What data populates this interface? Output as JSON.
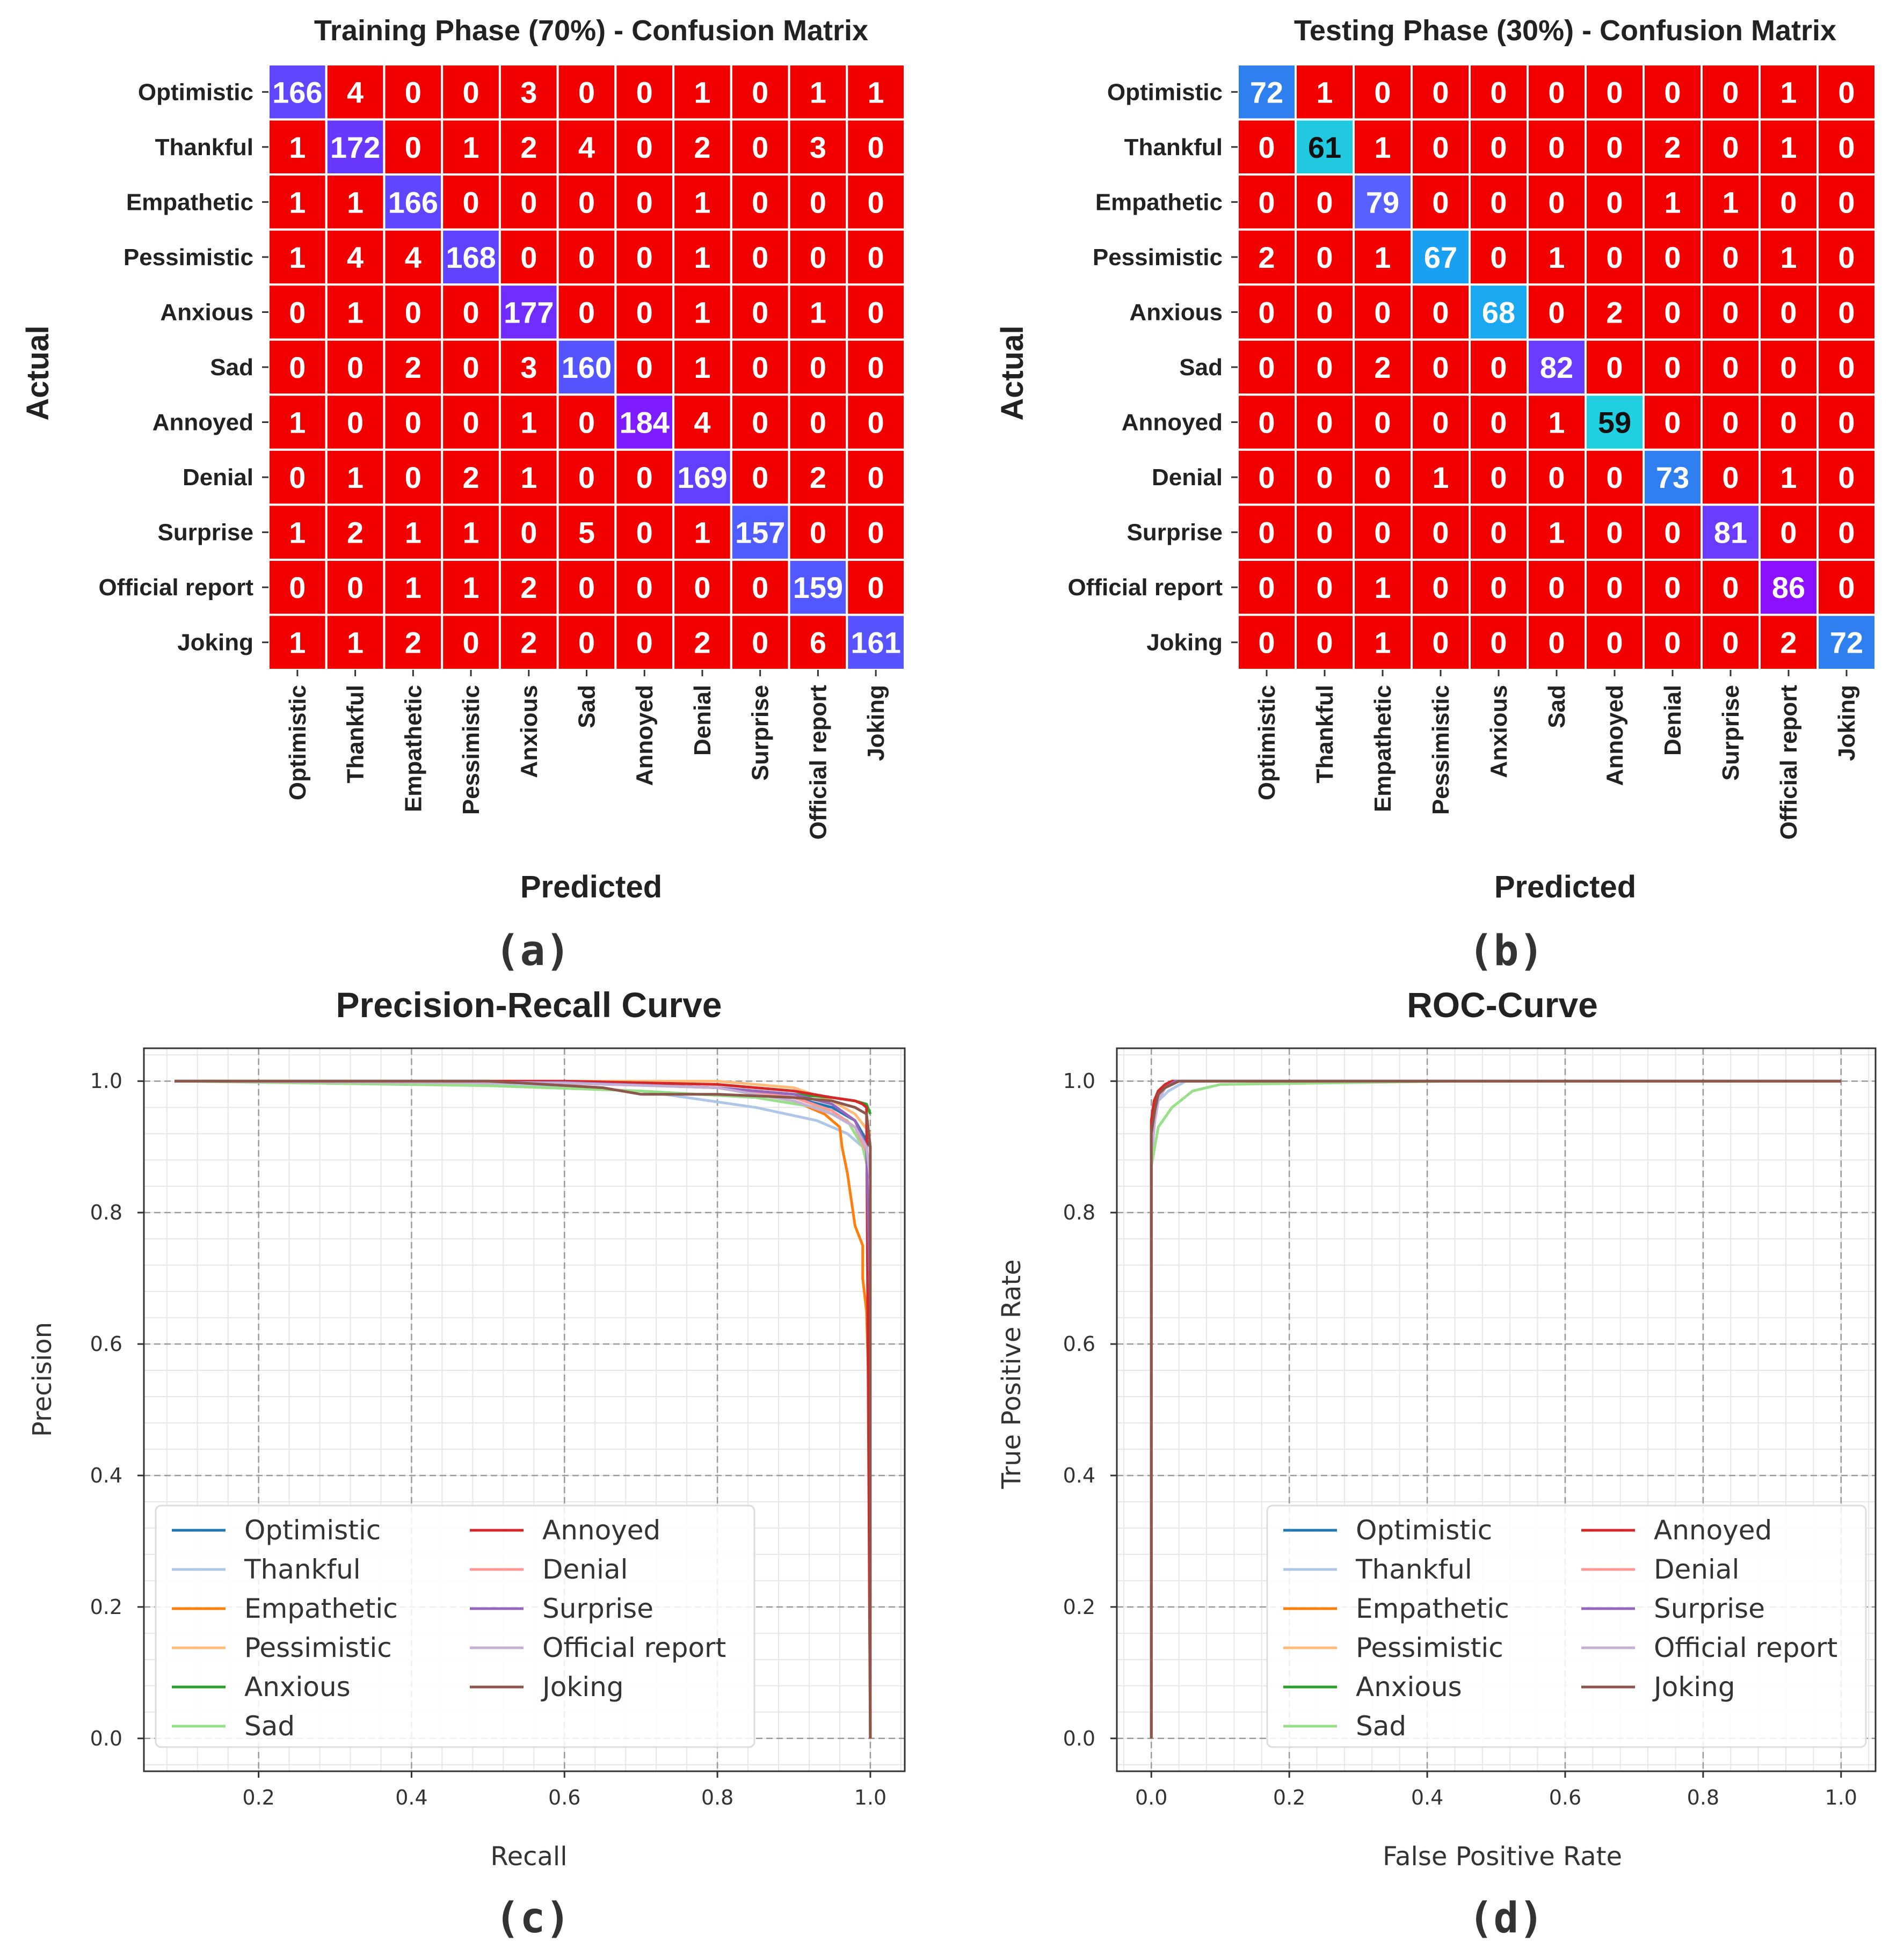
{
  "chart_data": [
    {
      "type": "heatmap",
      "panel_label": "(a)",
      "title": "Training Phase (70%) - Confusion Matrix",
      "xlabel": "Predicted",
      "ylabel": "Actual",
      "labels": [
        "Optimistic",
        "Thankful",
        "Empathetic",
        "Pessimistic",
        "Anxious",
        "Sad",
        "Annoyed",
        "Denial",
        "Surprise",
        "Official report",
        "Joking"
      ],
      "matrix": [
        [
          166,
          4,
          0,
          0,
          3,
          0,
          0,
          1,
          0,
          1,
          1
        ],
        [
          1,
          172,
          0,
          1,
          2,
          4,
          0,
          2,
          0,
          3,
          0
        ],
        [
          1,
          1,
          166,
          0,
          0,
          0,
          0,
          1,
          0,
          0,
          0
        ],
        [
          1,
          4,
          4,
          168,
          0,
          0,
          0,
          1,
          0,
          0,
          0
        ],
        [
          0,
          1,
          0,
          0,
          177,
          0,
          0,
          1,
          0,
          1,
          0
        ],
        [
          0,
          0,
          2,
          0,
          3,
          160,
          0,
          1,
          0,
          0,
          0
        ],
        [
          1,
          0,
          0,
          0,
          1,
          0,
          184,
          4,
          0,
          0,
          0
        ],
        [
          0,
          1,
          0,
          2,
          1,
          0,
          0,
          169,
          0,
          2,
          0
        ],
        [
          1,
          2,
          1,
          1,
          0,
          5,
          0,
          1,
          157,
          0,
          0
        ],
        [
          0,
          0,
          1,
          1,
          2,
          0,
          0,
          0,
          0,
          159,
          0
        ],
        [
          1,
          1,
          2,
          0,
          2,
          0,
          0,
          2,
          0,
          6,
          161
        ]
      ],
      "offdiag_color": "#f20000",
      "diag_color_low": "#4f5cff",
      "diag_color_high": "#7c1cff",
      "text_color": "#ffffff"
    },
    {
      "type": "heatmap",
      "panel_label": "(b)",
      "title": "Testing Phase (30%) - Confusion Matrix",
      "xlabel": "Predicted",
      "ylabel": "Actual",
      "labels": [
        "Optimistic",
        "Thankful",
        "Empathetic",
        "Pessimistic",
        "Anxious",
        "Sad",
        "Annoyed",
        "Denial",
        "Surprise",
        "Official report",
        "Joking"
      ],
      "matrix": [
        [
          72,
          1,
          0,
          0,
          0,
          0,
          0,
          0,
          0,
          1,
          0
        ],
        [
          0,
          61,
          1,
          0,
          0,
          0,
          0,
          2,
          0,
          1,
          0
        ],
        [
          0,
          0,
          79,
          0,
          0,
          0,
          0,
          1,
          1,
          0,
          0
        ],
        [
          2,
          0,
          1,
          67,
          0,
          1,
          0,
          0,
          0,
          1,
          0
        ],
        [
          0,
          0,
          0,
          0,
          68,
          0,
          2,
          0,
          0,
          0,
          0
        ],
        [
          0,
          0,
          2,
          0,
          0,
          82,
          0,
          0,
          0,
          0,
          0
        ],
        [
          0,
          0,
          0,
          0,
          0,
          1,
          59,
          0,
          0,
          0,
          0
        ],
        [
          0,
          0,
          0,
          1,
          0,
          0,
          0,
          73,
          0,
          1,
          0
        ],
        [
          0,
          0,
          0,
          0,
          0,
          1,
          0,
          0,
          81,
          0,
          0
        ],
        [
          0,
          0,
          1,
          0,
          0,
          0,
          0,
          0,
          0,
          86,
          0
        ],
        [
          0,
          0,
          1,
          0,
          0,
          0,
          0,
          0,
          0,
          2,
          72
        ]
      ],
      "diag_colors": [
        "#2f7ff0",
        "#20c8e0",
        "#5860ff",
        "#1aa0f0",
        "#1aa8f0",
        "#6a3cff",
        "#20d0e0",
        "#2f7ff0",
        "#6a3cff",
        "#8a10ff",
        "#2f7ff0"
      ],
      "dark_text_cells": [
        [
          1,
          1
        ],
        [
          6,
          6
        ]
      ],
      "offdiag_color": "#f20000",
      "text_color": "#ffffff"
    },
    {
      "type": "line",
      "panel_label": "(c)",
      "title": "Precision-Recall Curve",
      "xlabel": "Recall",
      "ylabel": "Precision",
      "xlim": [
        0.05,
        1.045
      ],
      "ylim": [
        -0.05,
        1.05
      ],
      "xticks": [
        0.2,
        0.4,
        0.6,
        0.8,
        1.0
      ],
      "yticks": [
        0.0,
        0.2,
        0.4,
        0.6,
        0.8,
        1.0
      ],
      "grid": true,
      "legend_position": "lower-left",
      "series": [
        {
          "name": "Optimistic",
          "color": "#1f77b4",
          "x": [
            0.09,
            0.6,
            0.8,
            0.9,
            0.95,
            0.98,
            0.99,
            1.0
          ],
          "y": [
            1.0,
            0.998,
            0.99,
            0.975,
            0.96,
            0.94,
            0.92,
            0.9
          ]
        },
        {
          "name": "Thankful",
          "color": "#aec7e8",
          "x": [
            0.09,
            0.5,
            0.7,
            0.85,
            0.93,
            0.97,
            0.99,
            1.0
          ],
          "y": [
            1.0,
            0.995,
            0.985,
            0.96,
            0.94,
            0.92,
            0.9,
            0.88
          ]
        },
        {
          "name": "Empathetic",
          "color": "#ff7f0e",
          "x": [
            0.09,
            0.6,
            0.8,
            0.9,
            0.94,
            0.96,
            0.963,
            0.97,
            0.975,
            0.98,
            0.99,
            0.99,
            0.995,
            0.998,
            0.999,
            1.0
          ],
          "y": [
            1.0,
            0.998,
            0.99,
            0.97,
            0.95,
            0.93,
            0.9,
            0.86,
            0.82,
            0.78,
            0.75,
            0.7,
            0.65,
            0.53,
            0.2,
            0.0
          ]
        },
        {
          "name": "Pessimistic",
          "color": "#ffbb78",
          "x": [
            0.09,
            0.6,
            0.8,
            0.9,
            0.95,
            0.98,
            1.0
          ],
          "y": [
            1.0,
            1.0,
            1.0,
            0.99,
            0.97,
            0.95,
            0.92
          ]
        },
        {
          "name": "Anxious",
          "color": "#2ca02c",
          "x": [
            0.09,
            0.6,
            0.8,
            0.9,
            0.95,
            0.98,
            0.995,
            1.0
          ],
          "y": [
            1.0,
            0.998,
            0.99,
            0.98,
            0.975,
            0.97,
            0.965,
            0.95
          ]
        },
        {
          "name": "Sad",
          "color": "#98df8a",
          "x": [
            0.09,
            0.5,
            0.7,
            0.85,
            0.93,
            0.97,
            0.99,
            1.0
          ],
          "y": [
            1.0,
            0.993,
            0.985,
            0.975,
            0.96,
            0.94,
            0.9,
            0.85
          ]
        },
        {
          "name": "Annoyed",
          "color": "#d62728",
          "x": [
            0.09,
            0.6,
            0.8,
            0.9,
            0.95,
            0.98,
            0.99,
            0.995,
            1.0
          ],
          "y": [
            1.0,
            1.0,
            0.995,
            0.985,
            0.975,
            0.97,
            0.965,
            0.96,
            0.0
          ]
        },
        {
          "name": "Denial",
          "color": "#ff9896",
          "x": [
            0.09,
            0.6,
            0.8,
            0.9,
            0.95,
            0.98,
            1.0
          ],
          "y": [
            1.0,
            0.997,
            0.99,
            0.975,
            0.955,
            0.93,
            0.88
          ]
        },
        {
          "name": "Surprise",
          "color": "#9467bd",
          "x": [
            0.09,
            0.6,
            0.8,
            0.9,
            0.95,
            0.98,
            0.995,
            1.0
          ],
          "y": [
            1.0,
            0.998,
            0.99,
            0.98,
            0.965,
            0.94,
            0.9,
            0.66
          ]
        },
        {
          "name": "Official report",
          "color": "#c5b0d5",
          "x": [
            0.09,
            0.6,
            0.8,
            0.9,
            0.95,
            0.98,
            0.995,
            1.0
          ],
          "y": [
            1.0,
            0.997,
            0.99,
            0.97,
            0.95,
            0.93,
            0.9,
            0.85
          ]
        },
        {
          "name": "Joking",
          "color": "#8c564b",
          "x": [
            0.09,
            0.5,
            0.65,
            0.7,
            0.8,
            0.9,
            0.95,
            0.98,
            0.995,
            1.0,
            1.0
          ],
          "y": [
            1.0,
            1.0,
            0.99,
            0.98,
            0.98,
            0.975,
            0.97,
            0.96,
            0.95,
            0.9,
            0.0
          ]
        }
      ]
    },
    {
      "type": "line",
      "panel_label": "(d)",
      "title": "ROC-Curve",
      "xlabel": "False Positive Rate",
      "ylabel": "True Positive Rate",
      "xlim": [
        -0.05,
        1.05
      ],
      "ylim": [
        -0.05,
        1.05
      ],
      "xticks": [
        0.0,
        0.2,
        0.4,
        0.6,
        0.8,
        1.0
      ],
      "yticks": [
        0.0,
        0.2,
        0.4,
        0.6,
        0.8,
        1.0
      ],
      "grid": true,
      "legend_position": "lower-right",
      "series": [
        {
          "name": "Optimistic",
          "color": "#1f77b4",
          "x": [
            0.0,
            0.0,
            0.005,
            0.01,
            0.02,
            0.04,
            1.0
          ],
          "y": [
            0.0,
            0.9,
            0.95,
            0.975,
            0.99,
            1.0,
            1.0
          ]
        },
        {
          "name": "Thankful",
          "color": "#aec7e8",
          "x": [
            0.0,
            0.0,
            0.005,
            0.01,
            0.025,
            0.05,
            1.0
          ],
          "y": [
            0.0,
            0.88,
            0.94,
            0.97,
            0.985,
            1.0,
            1.0
          ]
        },
        {
          "name": "Empathetic",
          "color": "#ff7f0e",
          "x": [
            0.0,
            0.0,
            0.005,
            0.01,
            0.02,
            0.03,
            1.0
          ],
          "y": [
            0.0,
            0.92,
            0.96,
            0.98,
            0.995,
            1.0,
            1.0
          ]
        },
        {
          "name": "Pessimistic",
          "color": "#ffbb78",
          "x": [
            0.0,
            0.0,
            0.004,
            0.01,
            0.02,
            0.03,
            1.0
          ],
          "y": [
            0.0,
            0.93,
            0.965,
            0.985,
            0.995,
            1.0,
            1.0
          ]
        },
        {
          "name": "Anxious",
          "color": "#2ca02c",
          "x": [
            0.0,
            0.0,
            0.005,
            0.01,
            0.02,
            0.04,
            1.0
          ],
          "y": [
            0.0,
            0.91,
            0.95,
            0.975,
            0.99,
            1.0,
            1.0
          ]
        },
        {
          "name": "Sad",
          "color": "#98df8a",
          "x": [
            0.0,
            0.0,
            0.01,
            0.03,
            0.06,
            0.1,
            0.45,
            1.0
          ],
          "y": [
            0.0,
            0.87,
            0.93,
            0.96,
            0.985,
            0.995,
            1.0,
            1.0
          ]
        },
        {
          "name": "Annoyed",
          "color": "#d62728",
          "x": [
            0.0,
            0.0,
            0.004,
            0.01,
            0.02,
            0.03,
            1.0
          ],
          "y": [
            0.0,
            0.94,
            0.97,
            0.985,
            0.995,
            1.0,
            1.0
          ]
        },
        {
          "name": "Denial",
          "color": "#ff9896",
          "x": [
            0.0,
            0.0,
            0.005,
            0.01,
            0.02,
            0.04,
            1.0
          ],
          "y": [
            0.0,
            0.9,
            0.95,
            0.975,
            0.99,
            1.0,
            1.0
          ]
        },
        {
          "name": "Surprise",
          "color": "#9467bd",
          "x": [
            0.0,
            0.0,
            0.005,
            0.01,
            0.02,
            0.035,
            1.0
          ],
          "y": [
            0.0,
            0.9,
            0.95,
            0.975,
            0.99,
            1.0,
            1.0
          ]
        },
        {
          "name": "Official report",
          "color": "#c5b0d5",
          "x": [
            0.0,
            0.0,
            0.005,
            0.01,
            0.02,
            0.04,
            1.0
          ],
          "y": [
            0.0,
            0.89,
            0.94,
            0.97,
            0.99,
            1.0,
            1.0
          ]
        },
        {
          "name": "Joking",
          "color": "#8c564b",
          "x": [
            0.0,
            0.0,
            0.005,
            0.01,
            0.02,
            0.04,
            1.0
          ],
          "y": [
            0.0,
            0.92,
            0.955,
            0.98,
            0.99,
            1.0,
            1.0
          ]
        }
      ]
    }
  ]
}
